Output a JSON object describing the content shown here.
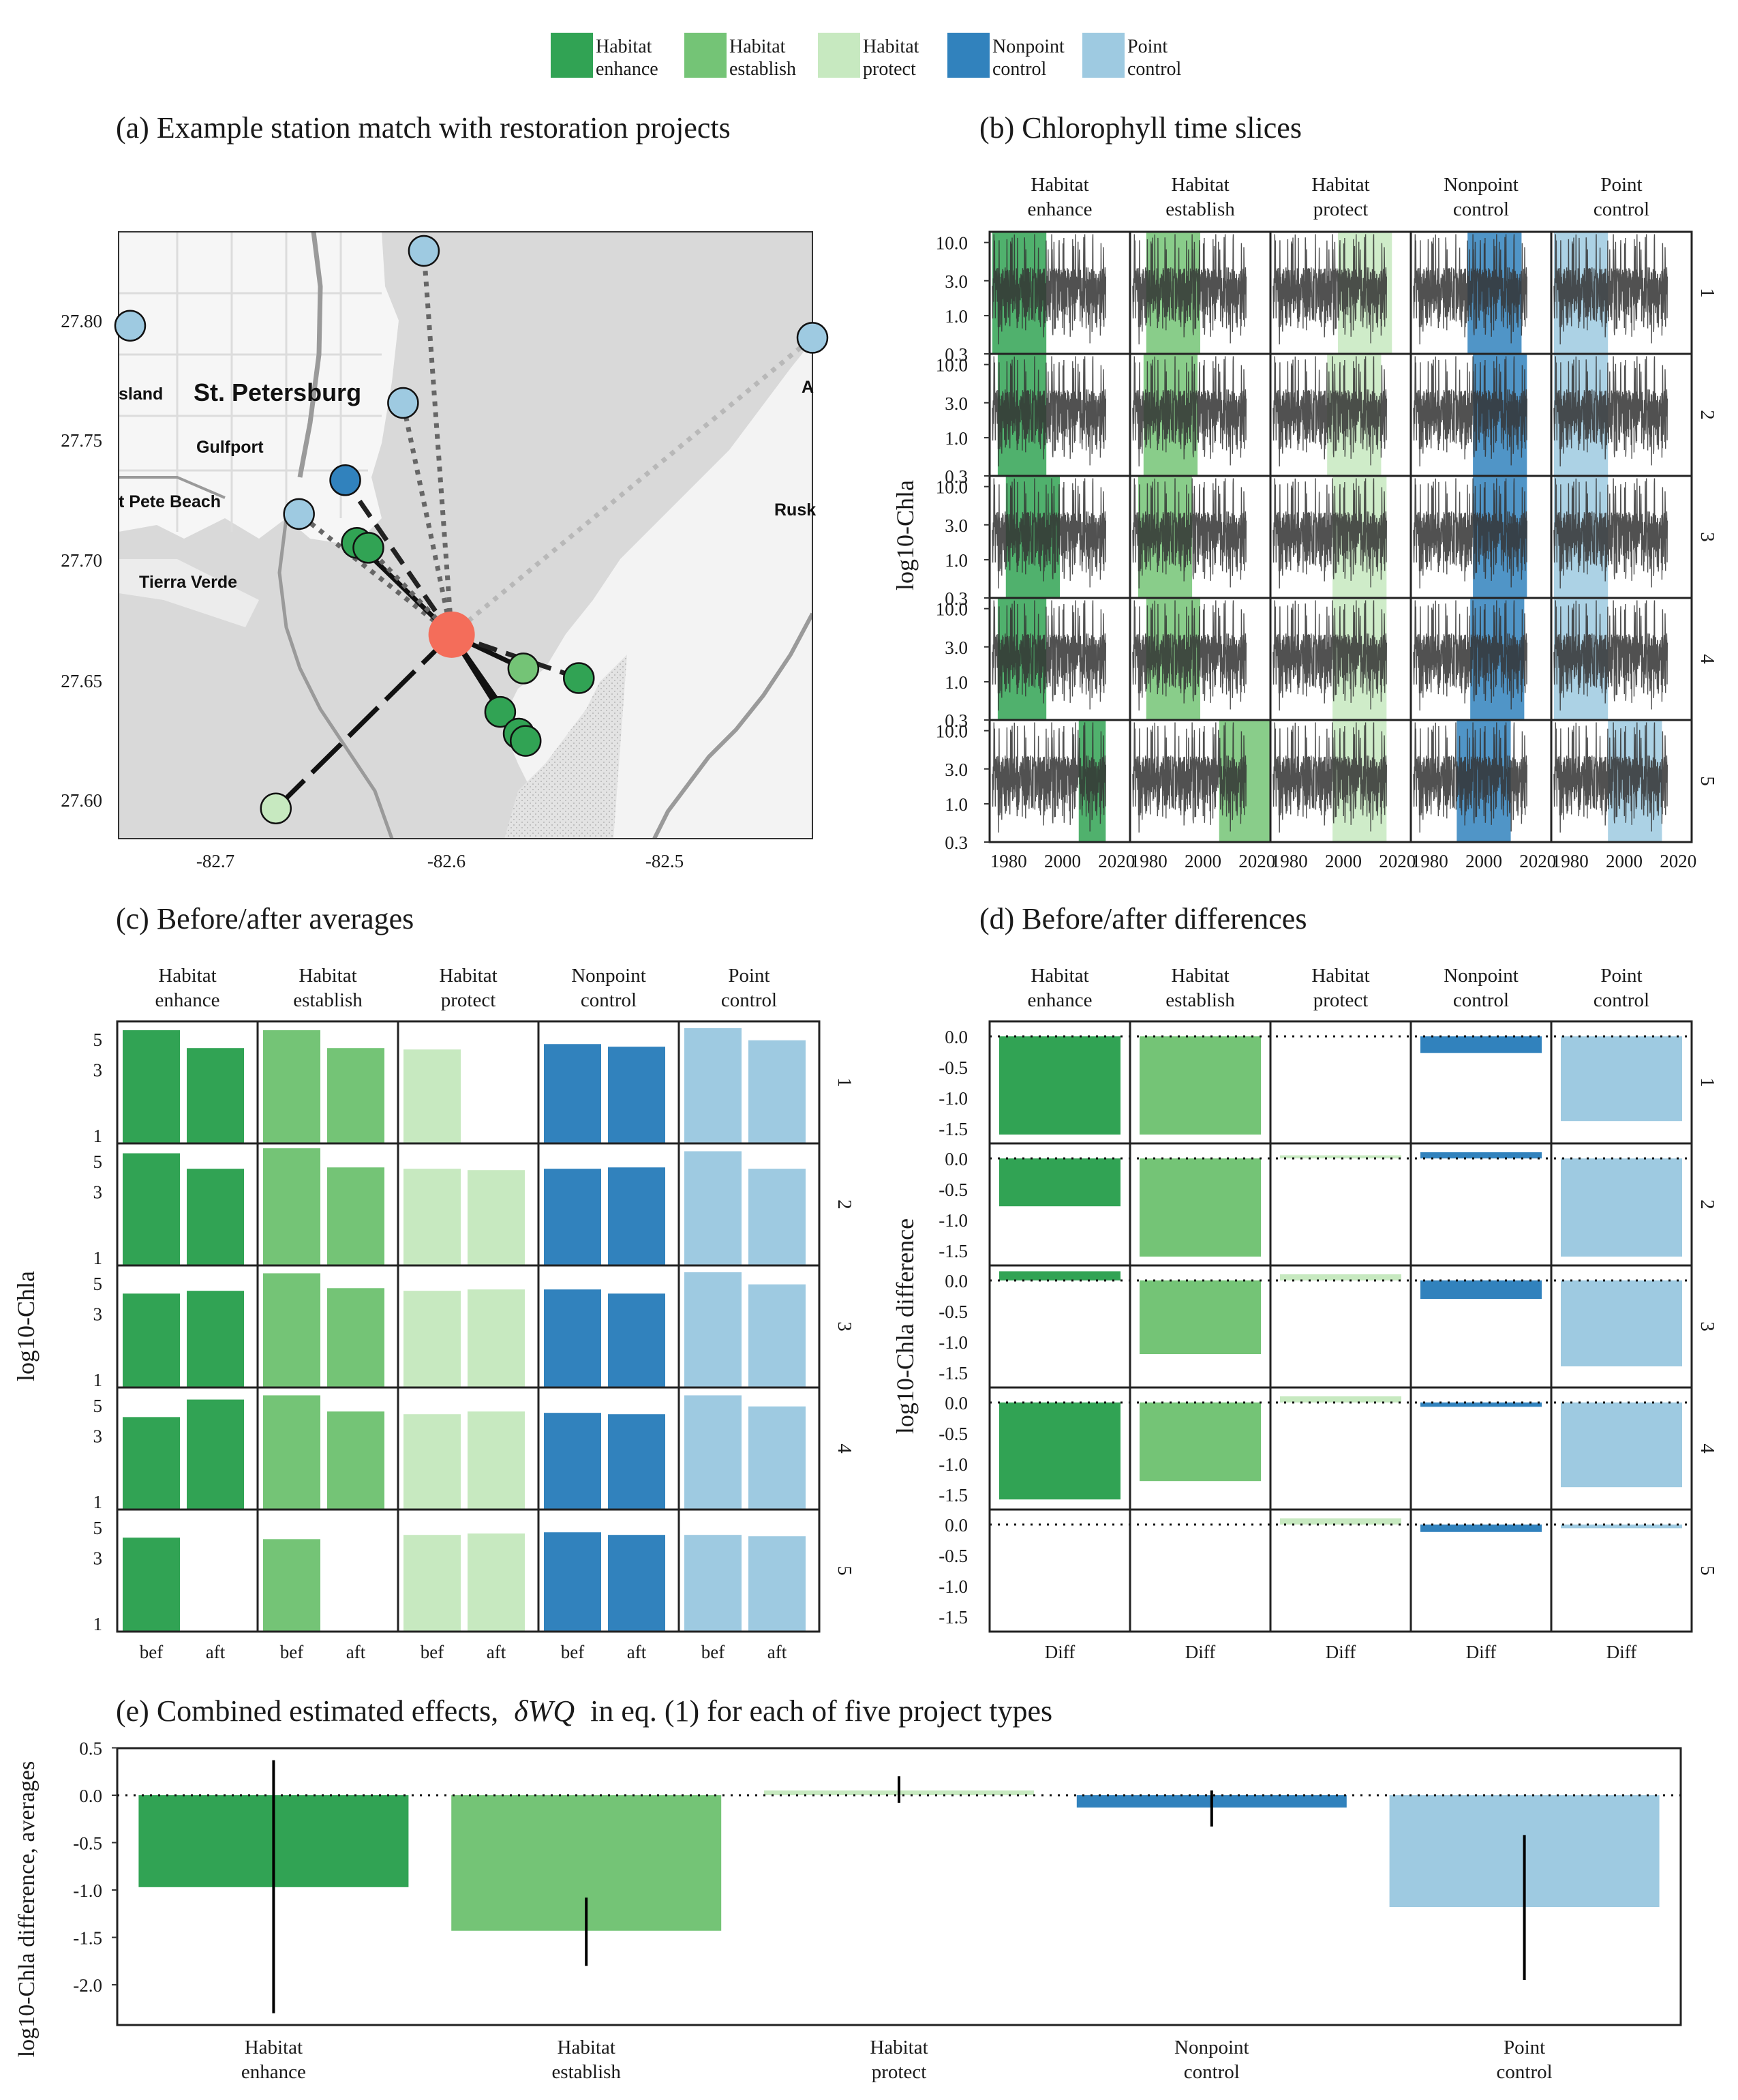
{
  "colors": {
    "Habitat enhance": "#31a354",
    "Habitat establish": "#74c476",
    "Habitat protect": "#c7e9c0",
    "Nonpoint control": "#3182bd",
    "Point control": "#9ecae1",
    "restoration_site": "#f46d5a",
    "ts_line": "#333333"
  },
  "legend": {
    "items": [
      {
        "key": "Habitat enhance",
        "line1": "Habitat",
        "line2": "enhance"
      },
      {
        "key": "Habitat establish",
        "line1": "Habitat",
        "line2": "establish"
      },
      {
        "key": "Habitat protect",
        "line1": "Habitat",
        "line2": "protect"
      },
      {
        "key": "Nonpoint control",
        "line1": "Nonpoint",
        "line2": "control"
      },
      {
        "key": "Point control",
        "line1": "Point",
        "line2": "control"
      }
    ]
  },
  "panel_titles": {
    "a": "(a) Example station match with restoration projects",
    "b": "(b) Chlorophyll time slices",
    "c": "(c) Before/after averages",
    "d": "(d) Before/after differences",
    "e_prefix": "(e) Combined estimated effects,",
    "e_delta": "δ",
    "e_wq": "WQ",
    "e_suffix": "in eq. (1) for each of five project types"
  },
  "strip_labels": [
    [
      "Habitat",
      "enhance"
    ],
    [
      "Habitat",
      "establish"
    ],
    [
      "Habitat",
      "protect"
    ],
    [
      "Nonpoint",
      "control"
    ],
    [
      "Point",
      "control"
    ]
  ],
  "row_labels": [
    "1",
    "2",
    "3",
    "4",
    "5"
  ],
  "map": {
    "place_labels": [
      "St. Petersburg",
      "Gulfport",
      "t Pete Beach",
      "Tierra Verde",
      "sland",
      "Rusk",
      "A"
    ],
    "y_ticks": [
      "27.80",
      "27.75",
      "27.70",
      "27.65",
      "27.60"
    ],
    "x_ticks": [
      "-82.7",
      "-82.6",
      "-82.5"
    ],
    "station": {
      "lon": -82.601,
      "lat": 27.667
    },
    "projects": [
      {
        "lon": -82.613,
        "lat": 27.826,
        "type": "Point control",
        "link": "dotted"
      },
      {
        "lon": -82.74,
        "lat": 27.795,
        "type": "Point control",
        "link": "none"
      },
      {
        "lon": -82.445,
        "lat": 27.79,
        "type": "Point control",
        "link": "dotted-light"
      },
      {
        "lon": -82.622,
        "lat": 27.763,
        "type": "Point control",
        "link": "dotted"
      },
      {
        "lon": -82.647,
        "lat": 27.731,
        "type": "Nonpoint control",
        "link": "dashed"
      },
      {
        "lon": -82.667,
        "lat": 27.717,
        "type": "Point control",
        "link": "dotted"
      },
      {
        "lon": -82.642,
        "lat": 27.705,
        "type": "Habitat enhance",
        "link": "solid"
      },
      {
        "lon": -82.637,
        "lat": 27.703,
        "type": "Habitat enhance",
        "link": "dotted"
      },
      {
        "lon": -82.57,
        "lat": 27.653,
        "type": "Habitat establish",
        "link": "solid"
      },
      {
        "lon": -82.546,
        "lat": 27.649,
        "type": "Habitat enhance",
        "link": "dashed"
      },
      {
        "lon": -82.58,
        "lat": 27.635,
        "type": "Habitat enhance",
        "link": "solid"
      },
      {
        "lon": -82.572,
        "lat": 27.626,
        "type": "Habitat enhance",
        "link": "solid"
      },
      {
        "lon": -82.569,
        "lat": 27.623,
        "type": "Habitat enhance",
        "link": "solid"
      },
      {
        "lon": -82.677,
        "lat": 27.595,
        "type": "Habitat protect",
        "link": "longdash"
      }
    ]
  },
  "chart_data": [
    {
      "panel": "b",
      "type": "line",
      "title": "(b) Chlorophyll time slices",
      "ylabel": "log10-Chla",
      "xlim": [
        1973,
        2025
      ],
      "ylim": [
        0.3,
        14
      ],
      "y_log": true,
      "y_ticks": [
        "10.0",
        "3.0",
        "1.0",
        "0.3"
      ],
      "x_ticks": [
        "1980",
        "2000",
        "2020"
      ],
      "series_note": "monthly chlorophyll series 1974-2016 at the matched station, shown in every facet",
      "shaded_windows": [
        [
          [
            1974,
            1994
          ],
          [
            1976,
            1994
          ],
          [
            1979,
            1999
          ],
          [
            1976,
            1994
          ],
          [
            2006,
            2016
          ]
        ],
        [
          [
            1979,
            1999
          ],
          [
            1978,
            1998
          ],
          [
            1976,
            1996
          ],
          [
            1979,
            1999
          ],
          [
            2006,
            2026
          ]
        ],
        [
          [
            1998,
            2018
          ],
          [
            1994,
            2014
          ],
          [
            1996,
            2016
          ],
          [
            1996,
            2016
          ],
          [
            1996,
            2016
          ]
        ],
        [
          [
            1994,
            2014
          ],
          [
            1996,
            2016
          ],
          [
            1996,
            2016
          ],
          [
            1995,
            2015
          ],
          [
            1990,
            2010
          ]
        ],
        [
          [
            1974,
            1994
          ],
          [
            1974,
            1994
          ],
          [
            1974,
            1994
          ],
          [
            1974,
            1994
          ],
          [
            1994,
            2014
          ]
        ]
      ]
    },
    {
      "panel": "c",
      "type": "bar",
      "title": "(c) Before/after averages",
      "ylabel": "log10-Chla",
      "categories": [
        "bef",
        "aft"
      ],
      "y_log": true,
      "ylim": [
        1,
        6
      ],
      "y_ticks": [
        "5",
        "3",
        "1"
      ],
      "facets": [
        [
          [
            5.8,
            4.3
          ],
          [
            5.7,
            4.4
          ],
          [
            4.2,
            4.4
          ],
          [
            4.1,
            5.5
          ],
          [
            4.2,
            null
          ]
        ],
        [
          [
            5.8,
            4.3
          ],
          [
            6.2,
            4.5
          ],
          [
            5.9,
            4.6
          ],
          [
            5.9,
            4.5
          ],
          [
            4.1,
            null
          ]
        ],
        [
          [
            4.2,
            null
          ],
          [
            4.4,
            4.3
          ],
          [
            4.4,
            4.5
          ],
          [
            4.3,
            4.5
          ],
          [
            4.4,
            4.5
          ]
        ],
        [
          [
            4.6,
            4.4
          ],
          [
            4.4,
            4.5
          ],
          [
            4.5,
            4.2
          ],
          [
            4.4,
            4.3
          ],
          [
            4.6,
            4.4
          ]
        ],
        [
          [
            6.0,
            4.9
          ],
          [
            5.9,
            4.4
          ],
          [
            6.0,
            4.9
          ],
          [
            5.9,
            4.9
          ],
          [
            4.4,
            4.3
          ]
        ]
      ]
    },
    {
      "panel": "d",
      "type": "bar",
      "title": "(d) Before/after differences",
      "ylabel": "log10-Chla difference",
      "categories": [
        "Diff"
      ],
      "ylim": [
        -1.65,
        0.15
      ],
      "y_ticks": [
        "0.0",
        "-0.5",
        "-1.0",
        "-1.5"
      ],
      "facets": [
        [
          -1.6,
          -0.78,
          0.15,
          -1.58,
          null
        ],
        [
          -1.6,
          -1.6,
          -1.2,
          -1.28,
          null
        ],
        [
          null,
          0.05,
          0.1,
          0.1,
          0.1
        ],
        [
          -0.27,
          0.1,
          -0.3,
          -0.07,
          -0.12
        ],
        [
          -1.38,
          -1.6,
          -1.4,
          -1.38,
          -0.06
        ]
      ]
    },
    {
      "panel": "e",
      "type": "bar",
      "title": "(e) Combined estimated effects, δWQ in eq. (1) for each of five project types",
      "ylabel": "log10-Chla difference, averages",
      "categories": [
        "Habitat enhance",
        "Habitat establish",
        "Habitat protect",
        "Nonpoint control",
        "Point control"
      ],
      "category_lines": [
        [
          "Habitat",
          "enhance"
        ],
        [
          "Habitat",
          "establish"
        ],
        [
          "Habitat",
          "protect"
        ],
        [
          "Nonpoint",
          "control"
        ],
        [
          "Point",
          "control"
        ]
      ],
      "values": [
        -0.97,
        -1.43,
        0.05,
        -0.13,
        -1.18
      ],
      "error_low": [
        -2.3,
        -1.8,
        -0.08,
        -0.33,
        -1.95
      ],
      "error_high": [
        0.37,
        -1.08,
        0.2,
        0.05,
        -0.42
      ],
      "ylim": [
        -2.4,
        0.5
      ],
      "y_ticks": [
        "0.5",
        "0.0",
        "-0.5",
        "-1.0",
        "-1.5",
        "-2.0"
      ]
    }
  ]
}
